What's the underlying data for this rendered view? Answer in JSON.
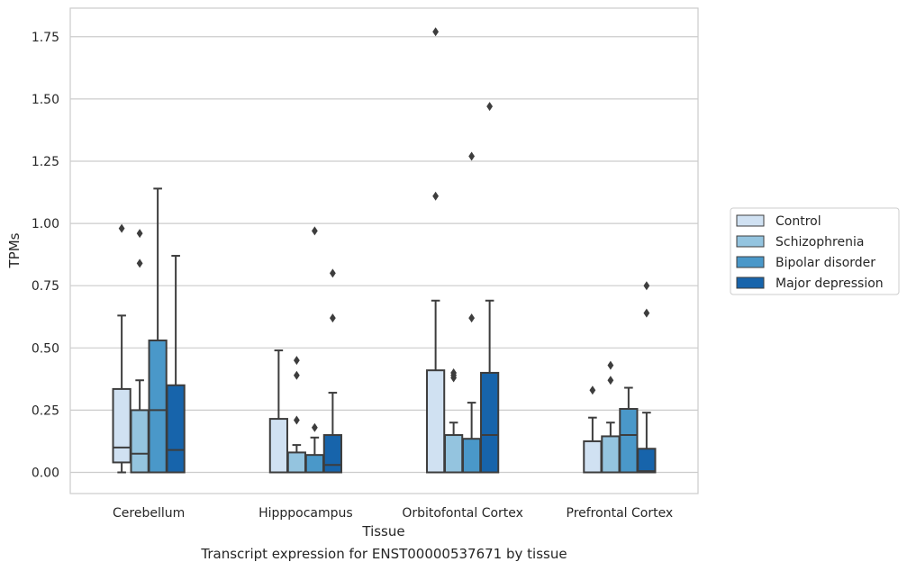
{
  "chart_data": {
    "type": "box",
    "ylabel": "TPMs",
    "xlabel": "Tissue",
    "caption": "Transcript expression for ENST00000537671 by tissue",
    "ylim": [
      -0.085,
      1.865
    ],
    "yticks": [
      "0.00",
      "0.25",
      "0.50",
      "0.75",
      "1.00",
      "1.25",
      "1.50",
      "1.75"
    ],
    "grid": true,
    "legend_position": "right",
    "categories": [
      "Cerebellum",
      "Hipppocampus",
      "Orbitofontal Cortex",
      "Prefrontal Cortex"
    ],
    "series": [
      {
        "name": "Control",
        "color": "#d0e1f2",
        "boxes": [
          {
            "whisker_low": 0.0,
            "q1": 0.04,
            "median": 0.1,
            "q3": 0.335,
            "whisker_high": 0.63,
            "outliers": [
              0.98
            ]
          },
          {
            "whisker_low": 0.0,
            "q1": 0.0,
            "median": 0.0,
            "q3": 0.215,
            "whisker_high": 0.49,
            "outliers": []
          },
          {
            "whisker_low": 0.0,
            "q1": 0.0,
            "median": 0.0,
            "q3": 0.41,
            "whisker_high": 0.69,
            "outliers": [
              1.11,
              1.77
            ]
          },
          {
            "whisker_low": 0.0,
            "q1": 0.0,
            "median": 0.0,
            "q3": 0.125,
            "whisker_high": 0.22,
            "outliers": [
              0.33
            ]
          }
        ]
      },
      {
        "name": "Schizophrenia",
        "color": "#94c4df",
        "boxes": [
          {
            "whisker_low": 0.0,
            "q1": 0.0,
            "median": 0.075,
            "q3": 0.25,
            "whisker_high": 0.37,
            "outliers": [
              0.84,
              0.96
            ]
          },
          {
            "whisker_low": 0.0,
            "q1": 0.0,
            "median": 0.0,
            "q3": 0.08,
            "whisker_high": 0.11,
            "outliers": [
              0.21,
              0.39,
              0.45
            ]
          },
          {
            "whisker_low": 0.0,
            "q1": 0.0,
            "median": 0.0,
            "q3": 0.15,
            "whisker_high": 0.2,
            "outliers": [
              0.38,
              0.39,
              0.4
            ]
          },
          {
            "whisker_low": 0.0,
            "q1": 0.0,
            "median": 0.0,
            "q3": 0.145,
            "whisker_high": 0.2,
            "outliers": [
              0.37,
              0.43
            ]
          }
        ]
      },
      {
        "name": "Bipolar disorder",
        "color": "#4a98c9",
        "boxes": [
          {
            "whisker_low": 0.0,
            "q1": 0.0,
            "median": 0.25,
            "q3": 0.53,
            "whisker_high": 1.14,
            "outliers": []
          },
          {
            "whisker_low": 0.0,
            "q1": 0.0,
            "median": 0.0,
            "q3": 0.07,
            "whisker_high": 0.14,
            "outliers": [
              0.18,
              0.97
            ]
          },
          {
            "whisker_low": 0.0,
            "q1": 0.0,
            "median": 0.0,
            "q3": 0.135,
            "whisker_high": 0.28,
            "outliers": [
              0.62,
              1.27
            ]
          },
          {
            "whisker_low": 0.0,
            "q1": 0.0,
            "median": 0.15,
            "q3": 0.255,
            "whisker_high": 0.34,
            "outliers": []
          }
        ]
      },
      {
        "name": "Major depression",
        "color": "#1764ab",
        "boxes": [
          {
            "whisker_low": 0.0,
            "q1": 0.0,
            "median": 0.09,
            "q3": 0.35,
            "whisker_high": 0.87,
            "outliers": []
          },
          {
            "whisker_low": 0.0,
            "q1": 0.0,
            "median": 0.03,
            "q3": 0.15,
            "whisker_high": 0.32,
            "outliers": [
              0.62,
              0.8
            ]
          },
          {
            "whisker_low": 0.0,
            "q1": 0.0,
            "median": 0.15,
            "q3": 0.4,
            "whisker_high": 0.69,
            "outliers": [
              1.47
            ]
          },
          {
            "whisker_low": 0.0,
            "q1": 0.0,
            "median": 0.005,
            "q3": 0.095,
            "whisker_high": 0.24,
            "outliers": [
              0.64,
              0.75
            ]
          }
        ]
      }
    ]
  }
}
